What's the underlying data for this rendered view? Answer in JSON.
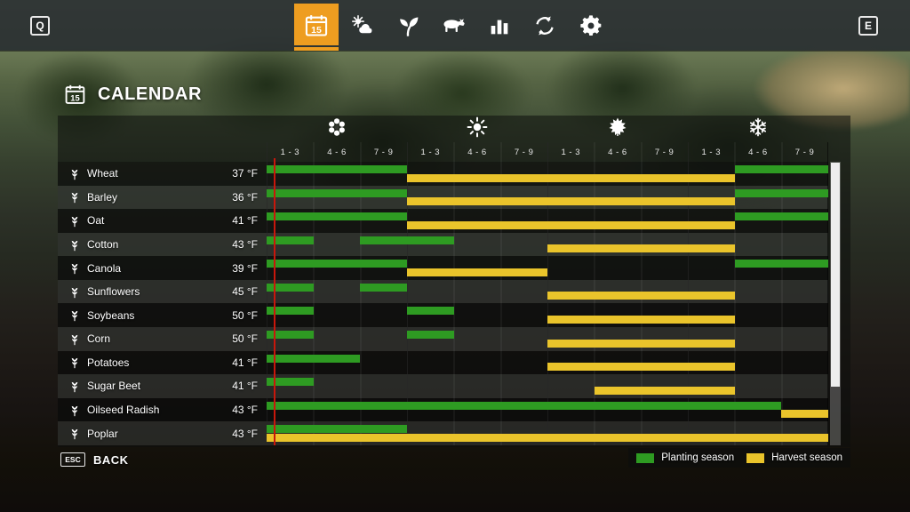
{
  "colors": {
    "accent": "#EE9D20",
    "planting": "#2E9B22",
    "harvest": "#EAC42B",
    "current_day": "#C8170C"
  },
  "hud": {
    "left_key": "Q",
    "right_key": "E",
    "calendar_day": "15",
    "tabs": [
      {
        "id": "calendar",
        "icon": "calendar-icon",
        "active": true
      },
      {
        "id": "weather",
        "icon": "weather-icon",
        "active": false
      },
      {
        "id": "crops",
        "icon": "plant-icon",
        "active": false
      },
      {
        "id": "animals",
        "icon": "animal-icon",
        "active": false
      },
      {
        "id": "statistics",
        "icon": "chart-icon",
        "active": false
      },
      {
        "id": "rotation",
        "icon": "rotation-icon",
        "active": false
      },
      {
        "id": "settings",
        "icon": "settings-icon",
        "active": false
      }
    ]
  },
  "page": {
    "title": "CALENDAR",
    "title_icon_day": "15"
  },
  "calendar": {
    "seasons": [
      {
        "name": "spring",
        "icon": "flower-icon"
      },
      {
        "name": "summer",
        "icon": "sun-icon"
      },
      {
        "name": "autumn",
        "icon": "leaf-icon"
      },
      {
        "name": "winter",
        "icon": "snow-icon"
      }
    ],
    "period_labels": [
      "1 - 3",
      "4 - 6",
      "7 - 9"
    ],
    "current_day_year_fraction": 0.012,
    "rows": [
      {
        "crop": "Wheat",
        "temp": "37 °F",
        "planting": [
          [
            0,
            3
          ],
          [
            10,
            12
          ]
        ],
        "harvest": [
          [
            3,
            10
          ]
        ]
      },
      {
        "crop": "Barley",
        "temp": "36 °F",
        "planting": [
          [
            0,
            3
          ],
          [
            10,
            12
          ]
        ],
        "harvest": [
          [
            3,
            10
          ]
        ]
      },
      {
        "crop": "Oat",
        "temp": "41 °F",
        "planting": [
          [
            0,
            3
          ],
          [
            10,
            12
          ]
        ],
        "harvest": [
          [
            3,
            10
          ]
        ]
      },
      {
        "crop": "Cotton",
        "temp": "43 °F",
        "planting": [
          [
            0,
            1
          ],
          [
            2,
            4
          ]
        ],
        "harvest": [
          [
            6,
            10
          ]
        ]
      },
      {
        "crop": "Canola",
        "temp": "39 °F",
        "planting": [
          [
            0,
            3
          ],
          [
            10,
            12
          ]
        ],
        "harvest": [
          [
            3,
            6
          ]
        ]
      },
      {
        "crop": "Sunflowers",
        "temp": "45 °F",
        "planting": [
          [
            0,
            1
          ],
          [
            2,
            3
          ]
        ],
        "harvest": [
          [
            6,
            10
          ]
        ]
      },
      {
        "crop": "Soybeans",
        "temp": "50 °F",
        "planting": [
          [
            0,
            1
          ],
          [
            3,
            4
          ]
        ],
        "harvest": [
          [
            6,
            10
          ]
        ]
      },
      {
        "crop": "Corn",
        "temp": "50 °F",
        "planting": [
          [
            0,
            1
          ],
          [
            3,
            4
          ]
        ],
        "harvest": [
          [
            6,
            10
          ]
        ]
      },
      {
        "crop": "Potatoes",
        "temp": "41 °F",
        "planting": [
          [
            0,
            2
          ]
        ],
        "harvest": [
          [
            6,
            10
          ]
        ]
      },
      {
        "crop": "Sugar Beet",
        "temp": "41 °F",
        "planting": [
          [
            0,
            1
          ]
        ],
        "harvest": [
          [
            7,
            10
          ]
        ]
      },
      {
        "crop": "Oilseed Radish",
        "temp": "43 °F",
        "planting": [
          [
            0,
            11
          ]
        ],
        "harvest": [
          [
            11,
            12
          ]
        ]
      },
      {
        "crop": "Poplar",
        "temp": "43 °F",
        "planting": [
          [
            0,
            3
          ]
        ],
        "harvest": [
          [
            0,
            12
          ]
        ]
      }
    ]
  },
  "footer": {
    "back_key": "ESC",
    "back_label": "BACK",
    "legend": [
      {
        "id": "planting",
        "label": "Planting season"
      },
      {
        "id": "harvest",
        "label": "Harvest season"
      }
    ]
  }
}
